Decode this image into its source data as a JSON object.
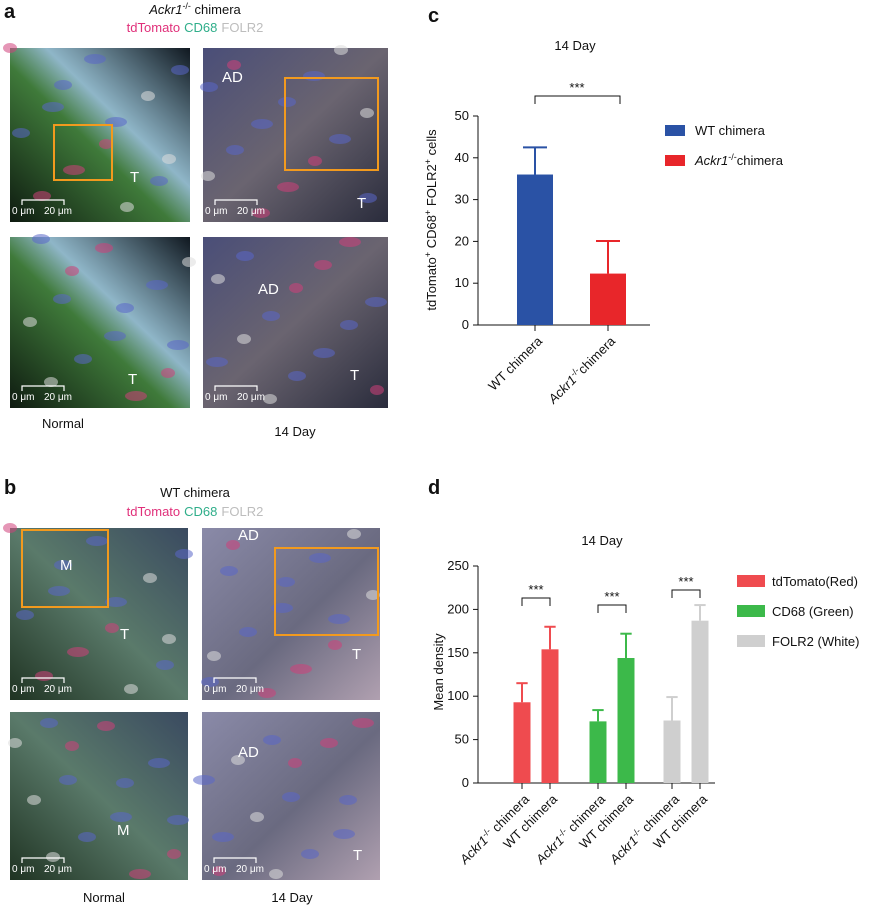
{
  "figure": {
    "panels": [
      {
        "letter": "a",
        "header": [
          {
            "text": "Ackr1",
            "style": "italic"
          },
          {
            "text": "-/-",
            "style": "sup"
          },
          {
            "text": " chimera"
          }
        ],
        "stains": [
          {
            "text": "tdTomato",
            "color": "#e0307a"
          },
          {
            "text": "CD68",
            "color": "#2fae8a"
          },
          {
            "text": "FOLR2",
            "color": "#bdbdbd"
          }
        ],
        "images": [
          {
            "labels": [
              "T"
            ],
            "scale": [
              "0 μm",
              "20 μm"
            ]
          },
          {
            "labels": [
              "AD",
              "T"
            ],
            "scale": [
              "0 μm",
              "20 μm"
            ]
          },
          {
            "labels": [
              "T"
            ],
            "scale": [
              "0 μm",
              "20 μm"
            ]
          },
          {
            "labels": [
              "AD",
              "T"
            ],
            "scale": [
              "0 μm",
              "20 μm"
            ]
          }
        ],
        "captions": [
          "Normal",
          "14 Day"
        ]
      },
      {
        "letter": "b",
        "header": [
          "WT chimera"
        ],
        "stains": [
          {
            "text": "tdTomato",
            "color": "#e0307a"
          },
          {
            "text": "CD68",
            "color": "#2fae8a"
          },
          {
            "text": "FOLR2",
            "color": "#bdbdbd"
          }
        ],
        "images": [
          {
            "labels": [
              "M",
              "T"
            ],
            "scale": [
              "0 μm",
              "20 μm"
            ]
          },
          {
            "labels": [
              "AD",
              "T"
            ],
            "scale": [
              "0 μm",
              "20 μm"
            ]
          },
          {
            "labels": [
              "M"
            ],
            "scale": [
              "0 μm",
              "20 μm"
            ]
          },
          {
            "labels": [
              "AD",
              "T"
            ],
            "scale": [
              "0 μm",
              "20 μm"
            ]
          }
        ],
        "captions": [
          "Normal",
          "14 Day"
        ]
      }
    ]
  },
  "chart_data": [
    {
      "type": "bar",
      "letter": "c",
      "title": "14 Day",
      "ylabel": [
        {
          "text": "tdTomato"
        },
        {
          "text": "+",
          "style": "sup"
        },
        {
          "text": " CD68"
        },
        {
          "text": "+",
          "style": "sup"
        },
        {
          "text": " FOLR2"
        },
        {
          "text": "+",
          "style": "sup"
        },
        {
          "text": " cells"
        }
      ],
      "categories": [
        [
          "WT chimera"
        ],
        [
          {
            "text": "Ackr1",
            "style": "italic"
          },
          {
            "text": "-/-",
            "style": "sup"
          },
          {
            "text": "chimera"
          }
        ]
      ],
      "values": [
        36,
        12.3
      ],
      "errors": [
        6.5,
        7.8
      ],
      "colors": [
        "#2a52a5",
        "#e8262a"
      ],
      "legend": [
        [
          "WT chimera"
        ],
        [
          {
            "text": "Ackr1",
            "style": "italic"
          },
          {
            "text": "-/-",
            "style": "sup"
          },
          {
            "text": "chimera"
          }
        ]
      ],
      "significance": "***",
      "ylim": [
        0,
        50
      ],
      "yticks": [
        0,
        10,
        20,
        30,
        40,
        50
      ]
    },
    {
      "type": "grouped_bar",
      "letter": "d",
      "title": "14 Day",
      "ylabel": [
        "Mean density"
      ],
      "series": [
        {
          "name": "tdTomato(Red)",
          "color": "#ef4b4f",
          "values": [
            93,
            154
          ],
          "errors": [
            22,
            26
          ],
          "categories": [
            [
              {
                "text": "Ackr1",
                "style": "italic"
              },
              {
                "text": "-/-",
                "style": "sup"
              },
              {
                "text": " chimera"
              }
            ],
            [
              "WT chimera"
            ]
          ]
        },
        {
          "name": "CD68 (Green)",
          "color": "#3cb94a",
          "values": [
            71,
            144
          ],
          "errors": [
            13,
            28
          ],
          "categories": [
            [
              {
                "text": "Ackr1",
                "style": "italic"
              },
              {
                "text": "-/-",
                "style": "sup"
              },
              {
                "text": " chimera"
              }
            ],
            [
              "WT chimera"
            ]
          ]
        },
        {
          "name": "FOLR2 (White)",
          "color": "#cfcfcf",
          "values": [
            72,
            187
          ],
          "errors": [
            27,
            18
          ],
          "categories": [
            [
              {
                "text": "Ackr1",
                "style": "italic"
              },
              {
                "text": "-/-",
                "style": "sup"
              },
              {
                "text": " chimera"
              }
            ],
            [
              "WT chimera"
            ]
          ]
        }
      ],
      "significance": [
        "***",
        "***",
        "***"
      ],
      "ylim": [
        0,
        250
      ],
      "yticks": [
        0,
        50,
        100,
        150,
        200,
        250
      ]
    }
  ]
}
